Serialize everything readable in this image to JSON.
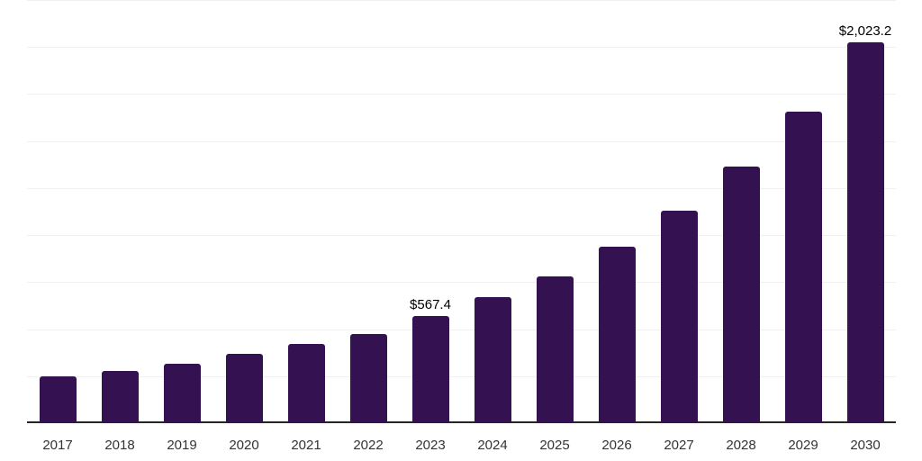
{
  "chart_data": {
    "type": "bar",
    "title": "",
    "xlabel": "",
    "ylabel": "",
    "categories": [
      "2017",
      "2018",
      "2019",
      "2020",
      "2021",
      "2022",
      "2023",
      "2024",
      "2025",
      "2026",
      "2027",
      "2028",
      "2029",
      "2030"
    ],
    "values": [
      247,
      278,
      316,
      367,
      419,
      476,
      567.4,
      668,
      780,
      936,
      1128,
      1365,
      1658,
      2023.2
    ],
    "value_labels": {
      "2023": "$567.4",
      "2030": "$2,023.2"
    },
    "ylim": [
      0,
      2250
    ],
    "gridline_step": 250,
    "grid": true,
    "legend": false,
    "y_axis_labels_visible": false,
    "colors": {
      "bar": "#341150",
      "gridline": "#f0f0f2",
      "axis_line": "#262626",
      "tick_label": "#333333",
      "value_label": "#000000"
    }
  },
  "layout_note": ""
}
